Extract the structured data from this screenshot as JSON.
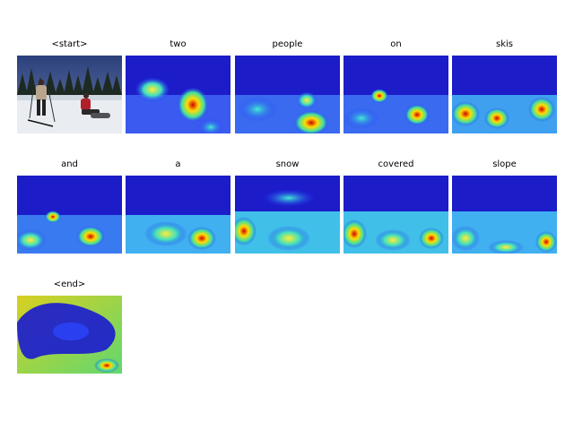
{
  "figure": {
    "panels": [
      {
        "word": "<start>",
        "kind": "photo"
      },
      {
        "word": "two",
        "kind": "attention"
      },
      {
        "word": "people",
        "kind": "attention"
      },
      {
        "word": "on",
        "kind": "attention"
      },
      {
        "word": "skis",
        "kind": "attention"
      },
      {
        "word": "and",
        "kind": "attention"
      },
      {
        "word": "a",
        "kind": "attention"
      },
      {
        "word": "snow",
        "kind": "attention"
      },
      {
        "word": "covered",
        "kind": "attention"
      },
      {
        "word": "slope",
        "kind": "attention"
      },
      {
        "word": "<end>",
        "kind": "attention"
      }
    ]
  }
}
